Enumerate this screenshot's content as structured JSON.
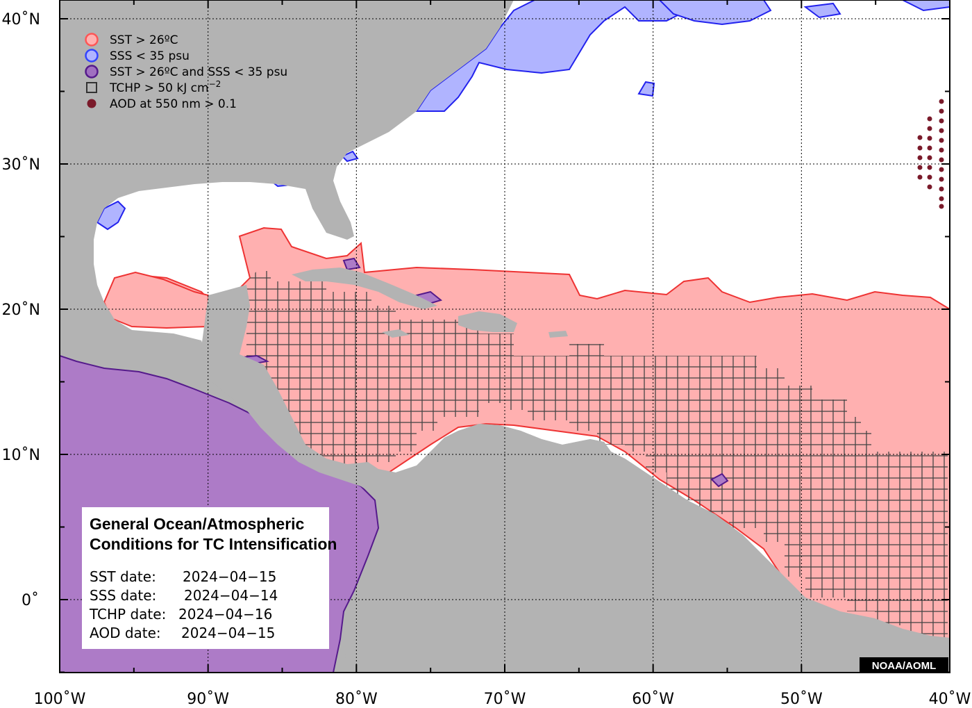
{
  "map": {
    "lon_ticks": [
      {
        "lon": -100,
        "label": "100˚W"
      },
      {
        "lon": -90,
        "label": "90˚W"
      },
      {
        "lon": -80,
        "label": "80˚W"
      },
      {
        "lon": -70,
        "label": "70˚W"
      },
      {
        "lon": -60,
        "label": "60˚W"
      },
      {
        "lon": -50,
        "label": "50˚W"
      },
      {
        "lon": -40,
        "label": "40˚W"
      }
    ],
    "lat_ticks": [
      {
        "lat": 0,
        "label": "0˚"
      },
      {
        "lat": 10,
        "label": "10˚N"
      },
      {
        "lat": 20,
        "label": "20˚N"
      },
      {
        "lat": 30,
        "label": "30˚N"
      },
      {
        "lat": 40,
        "label": "40˚N"
      }
    ],
    "lon_range": [
      -100,
      -40
    ],
    "lat_range": [
      -5,
      44
    ],
    "grid": true
  },
  "legend": {
    "items": [
      {
        "symbol": "circle-ring",
        "color": "#ff5555",
        "fill": "#ffb0b0",
        "label": "SST > 26ºC"
      },
      {
        "symbol": "circle-ring",
        "color": "#3344ff",
        "fill": "#b0b4ff",
        "label": "SSS < 35 psu"
      },
      {
        "symbol": "circle-ring",
        "color": "#551a8b",
        "fill": "#a070c0",
        "label": "SST > 26ºC and SSS < 35 psu"
      },
      {
        "symbol": "square-open",
        "color": "#333333",
        "label": "TCHP > 50 kJ cm",
        "superscript": "−2"
      },
      {
        "symbol": "dot",
        "color": "#7a1a2a",
        "label": "AOD at 550 nm > 0.1"
      }
    ]
  },
  "info_box": {
    "title_line1": "General Ocean/Atmospheric",
    "title_line2": "Conditions for TC Intensification",
    "sst_label": "SST date:",
    "sst_date": "2024−04−15",
    "sss_label": "SSS date:",
    "sss_date": "2024−04−14",
    "tchp_label": "TCHP date:",
    "tchp_date": "2024−04−16",
    "aod_label": "AOD date:",
    "aod_date": "2024−04−15"
  },
  "credit": "NOAA/AOML",
  "colors": {
    "land": "#b3b3b3",
    "ocean": "#ffffff",
    "sst": "#ffb0b0",
    "sst_line": "#ee3333",
    "sss": "#b0b4ff",
    "sss_line": "#2222ee",
    "both": "#ad7bc7",
    "both_line": "#551a8b",
    "tchp_grid": "#444444",
    "aod": "#7a1a2a"
  }
}
